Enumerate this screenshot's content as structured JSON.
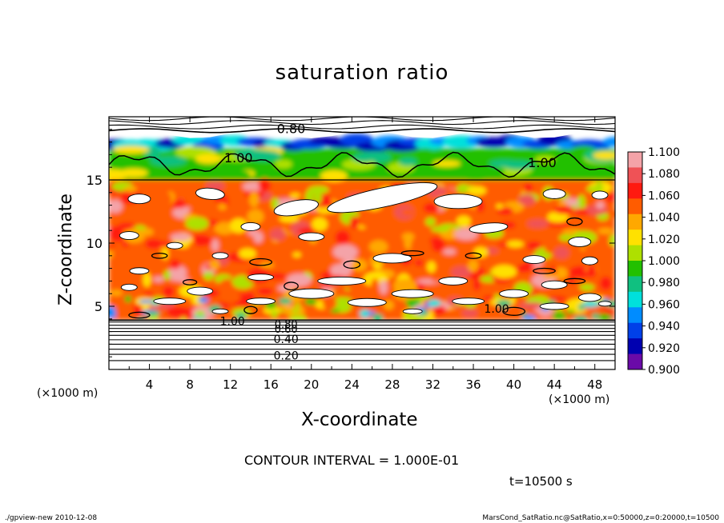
{
  "title": "saturation ratio",
  "footer": {
    "left": "./gpview-new   2010-12-08",
    "right": "MarsCond_SatRatio.nc@SatRatio,x=0:50000,z=0:20000,t=10500"
  },
  "annotations": {
    "contour_interval": "CONTOUR INTERVAL = 1.000E-01",
    "time": "t=10500 s"
  },
  "chart_data": {
    "type": "heatmap",
    "title": "saturation ratio",
    "xlabel": "X-coordinate",
    "ylabel": "Z-coordinate",
    "x_unit": "(×1000 m)",
    "y_unit": "(×1000 m)",
    "xlim": [
      0,
      50
    ],
    "ylim": [
      0,
      20
    ],
    "x_ticks": [
      4,
      8,
      12,
      16,
      20,
      24,
      28,
      32,
      36,
      40,
      44,
      48
    ],
    "y_ticks": [
      5,
      10,
      15
    ],
    "colorbar": {
      "min": 0.9,
      "max": 1.1,
      "labels": [
        "1.100",
        "1.080",
        "1.060",
        "1.040",
        "1.020",
        "1.000",
        "0.980",
        "0.960",
        "0.940",
        "0.920",
        "0.900"
      ],
      "colors": [
        "#f4a3a8",
        "#ef5256",
        "#ff1a10",
        "#ff5c00",
        "#ffa800",
        "#ffe100",
        "#aee000",
        "#22c000",
        "#10c080",
        "#00e0dc",
        "#008cff",
        "#0040e8",
        "#0000b0",
        "#6a0aa8",
        "#b0b0b0"
      ]
    },
    "contour_labels": [
      "0.80",
      "1.00",
      "1.00",
      "1.00",
      "1.00",
      "0.80",
      "0.60",
      "0.40",
      "0.20"
    ],
    "contour_interval": 0.1,
    "time_s": 10500,
    "layers": [
      {
        "z_range": [
          0,
          3.8
        ],
        "value": "below 0.9 (white, contoured)"
      },
      {
        "z_range": [
          3.8,
          15
        ],
        "value": "supersaturated, mostly 1.02-1.10 with white patches above 1.10"
      },
      {
        "z_range": [
          15,
          17.5
        ],
        "value": "about 1.00-1.02"
      },
      {
        "z_range": [
          17.5,
          18.5
        ],
        "value": "0.90-0.98"
      },
      {
        "z_range": [
          18.5,
          20
        ],
        "value": "below 0.9 (white, contoured)"
      }
    ]
  }
}
